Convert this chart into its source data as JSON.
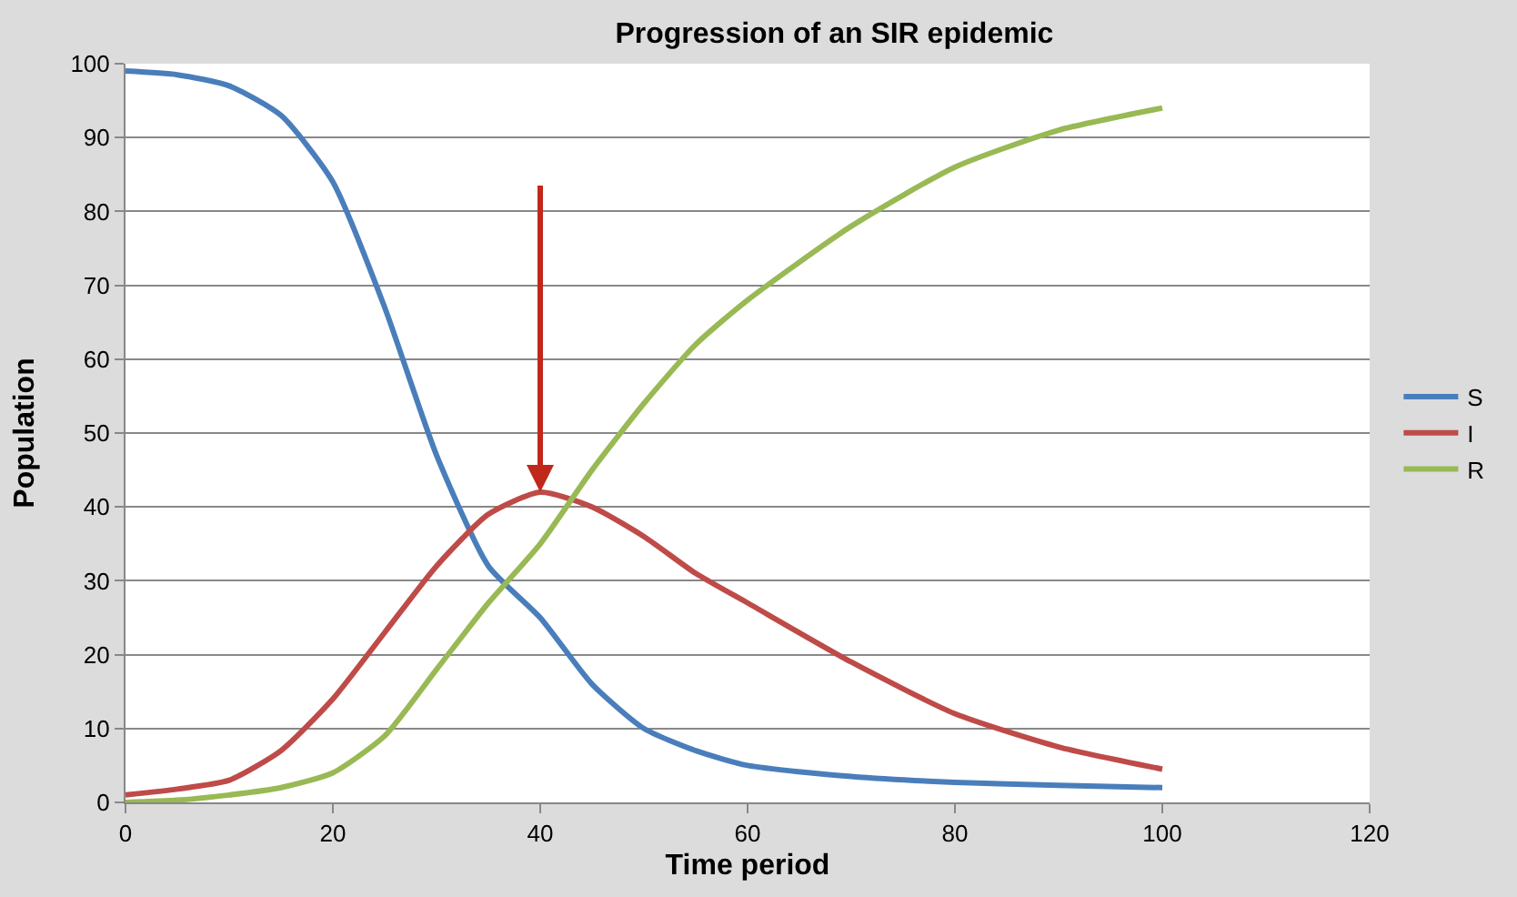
{
  "chart_data": {
    "type": "line",
    "title": "Progression of an SIR epidemic",
    "xlabel": "Time period",
    "ylabel": "Population",
    "x": [
      0,
      5,
      10,
      15,
      20,
      25,
      30,
      35,
      40,
      45,
      50,
      55,
      60,
      70,
      80,
      90,
      100
    ],
    "series": [
      {
        "name": "S",
        "color": "#4a7ebb",
        "values": [
          99,
          98.5,
          97,
          93,
          84,
          67,
          47,
          32,
          25,
          16,
          10,
          7,
          5,
          3.5,
          2.7,
          2.3,
          2
        ]
      },
      {
        "name": "I",
        "color": "#be4b48",
        "values": [
          1,
          1.8,
          3,
          7,
          14,
          23,
          32,
          39,
          42,
          40,
          36,
          31,
          27,
          19,
          12,
          7.5,
          4.5
        ]
      },
      {
        "name": "R",
        "color": "#98b954",
        "values": [
          0,
          0.3,
          1,
          2,
          4,
          9,
          18,
          27,
          35,
          45,
          54,
          62,
          68,
          78,
          86,
          91,
          94
        ]
      }
    ],
    "xlim": [
      0,
      120
    ],
    "xticks": [
      0,
      20,
      40,
      60,
      80,
      100,
      120
    ],
    "ylim": [
      0,
      100
    ],
    "yticks": [
      0,
      10,
      20,
      30,
      40,
      50,
      60,
      70,
      80,
      90,
      100
    ],
    "grid": "y",
    "legend": "right",
    "marker": "none",
    "line_style": "solid"
  }
}
